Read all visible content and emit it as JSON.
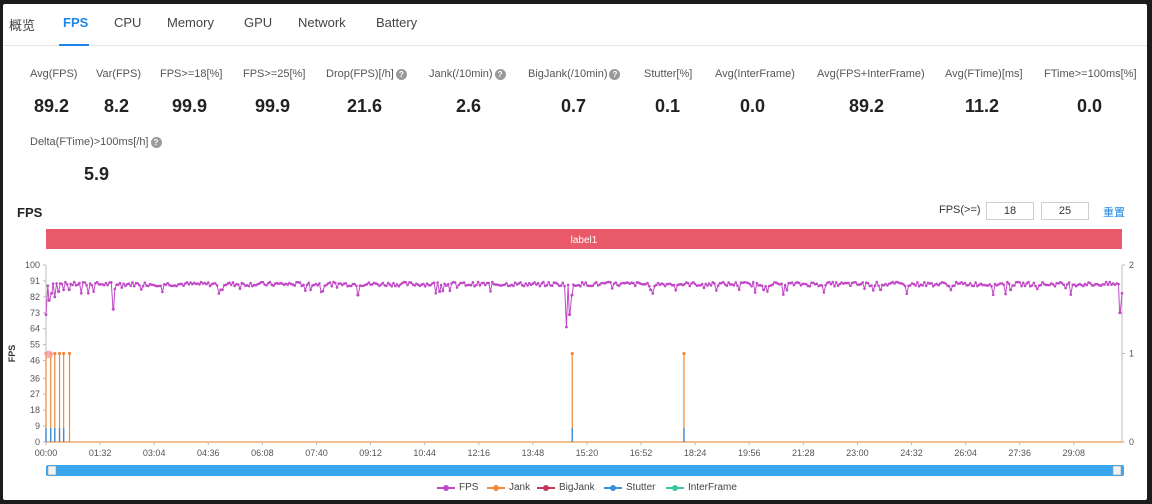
{
  "tabs": [
    {
      "label": "概览",
      "name": "tab-overview"
    },
    {
      "label": "FPS",
      "name": "tab-fps",
      "active": true
    },
    {
      "label": "CPU",
      "name": "tab-cpu"
    },
    {
      "label": "Memory",
      "name": "tab-memory"
    },
    {
      "label": "GPU",
      "name": "tab-gpu"
    },
    {
      "label": "Network",
      "name": "tab-network"
    },
    {
      "label": "Battery",
      "name": "tab-battery"
    }
  ],
  "stats": [
    {
      "label": "Avg(FPS)",
      "value": "89.2",
      "help": false
    },
    {
      "label": "Var(FPS)",
      "value": "8.2",
      "help": false
    },
    {
      "label": "FPS>=18[%]",
      "value": "99.9",
      "help": false
    },
    {
      "label": "FPS>=25[%]",
      "value": "99.9",
      "help": false
    },
    {
      "label": "Drop(FPS)[/h]",
      "value": "21.6",
      "help": true
    },
    {
      "label": "Jank(/10min)",
      "value": "2.6",
      "help": true
    },
    {
      "label": "BigJank(/10min)",
      "value": "0.7",
      "help": true
    },
    {
      "label": "Stutter[%]",
      "value": "0.1",
      "help": false
    },
    {
      "label": "Avg(InterFrame)",
      "value": "0.0",
      "help": false
    },
    {
      "label": "Avg(FPS+InterFrame)",
      "value": "89.2",
      "help": false
    },
    {
      "label": "Avg(FTime)[ms]",
      "value": "11.2",
      "help": false
    },
    {
      "label": "FTime>=100ms[%]",
      "value": "0.0",
      "help": false
    },
    {
      "label": "Delta(FTime)>100ms[/h]",
      "value": "5.9",
      "help": true
    }
  ],
  "section": {
    "title": "FPS"
  },
  "filter": {
    "label": "FPS(>=)",
    "low": "18",
    "high": "25",
    "reset_label": "重置"
  },
  "colors": {
    "accent": "#1e86e8",
    "label_bar": "#e8596a",
    "fps": "#c149c7",
    "jank": "#f0893a",
    "bigjank": "#c7375a",
    "stutter": "#3b8fe0",
    "interframe": "#3cc5a0",
    "scrollbar": "#3aa6ee"
  },
  "chart_data": {
    "type": "line",
    "label_bar": "label1",
    "ylabel": "FPS",
    "y_ticks": [
      "100",
      "91",
      "82",
      "73",
      "64",
      "55",
      "46",
      "36",
      "27",
      "18",
      "9",
      "0"
    ],
    "y_tick_values": [
      100,
      91,
      82,
      73,
      64,
      55,
      46,
      36,
      27,
      18,
      9,
      0
    ],
    "ylim": [
      0,
      100
    ],
    "y2_ticks": [
      "2",
      "1",
      "0"
    ],
    "y2lim": [
      0,
      2
    ],
    "x_ticks": [
      "00:00",
      "01:32",
      "03:04",
      "04:36",
      "06:08",
      "07:40",
      "09:12",
      "10:44",
      "12:16",
      "13:48",
      "15:20",
      "16:52",
      "18:24",
      "19:56",
      "21:28",
      "23:00",
      "24:32",
      "26:04",
      "27:36",
      "29:08"
    ],
    "x_tick_seconds": [
      0,
      92,
      184,
      276,
      368,
      460,
      552,
      644,
      736,
      828,
      920,
      1012,
      1104,
      1196,
      1288,
      1380,
      1472,
      1564,
      1656,
      1748
    ],
    "x_max_seconds": 1830,
    "fps_baseline": 89.2,
    "fps_dips": [
      {
        "t": 0,
        "value": 72
      },
      {
        "t": 5,
        "value": 80
      },
      {
        "t": 10,
        "value": 84
      },
      {
        "t": 15,
        "value": 82
      },
      {
        "t": 22,
        "value": 85
      },
      {
        "t": 30,
        "value": 86
      },
      {
        "t": 40,
        "value": 86
      },
      {
        "t": 60,
        "value": 84
      },
      {
        "t": 72,
        "value": 84
      },
      {
        "t": 115,
        "value": 75
      },
      {
        "t": 300,
        "value": 86
      },
      {
        "t": 530,
        "value": 83
      },
      {
        "t": 670,
        "value": 85
      },
      {
        "t": 885,
        "value": 65
      },
      {
        "t": 890,
        "value": 72
      },
      {
        "t": 895,
        "value": 83
      },
      {
        "t": 1028,
        "value": 86
      },
      {
        "t": 1220,
        "value": 86
      },
      {
        "t": 1420,
        "value": 86
      },
      {
        "t": 1640,
        "value": 86
      },
      {
        "t": 1826,
        "value": 73
      },
      {
        "t": 1830,
        "value": 84
      }
    ],
    "jank_events_seconds": [
      0,
      8,
      15,
      23,
      30,
      40,
      895,
      1085
    ],
    "stutter_events_seconds": [
      0,
      8,
      15,
      23,
      30,
      895,
      1085
    ],
    "series": [
      {
        "name": "FPS"
      },
      {
        "name": "Jank"
      },
      {
        "name": "BigJank"
      },
      {
        "name": "Stutter"
      },
      {
        "name": "InterFrame"
      }
    ]
  }
}
